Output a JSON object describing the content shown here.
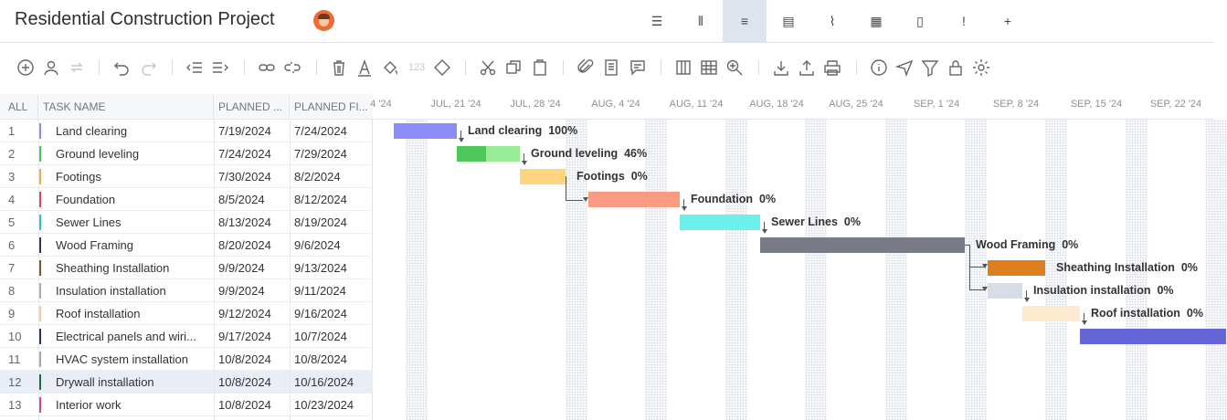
{
  "project": {
    "title": "Residential Construction Project"
  },
  "view_tabs": [
    {
      "icon": "list-view-icon",
      "glyph": "☰"
    },
    {
      "icon": "board-view-icon",
      "glyph": "⫴"
    },
    {
      "icon": "gantt-view-icon",
      "glyph": "≡"
    },
    {
      "icon": "sheet-view-icon",
      "glyph": "▤"
    },
    {
      "icon": "dashboard-view-icon",
      "glyph": "⌇"
    },
    {
      "icon": "calendar-view-icon",
      "glyph": "▦"
    },
    {
      "icon": "docs-view-icon",
      "glyph": "▯"
    },
    {
      "icon": "risk-view-icon",
      "glyph": "!"
    },
    {
      "icon": "add-view-icon",
      "glyph": "+"
    }
  ],
  "toolbar": {
    "number_format_label": "123"
  },
  "grid": {
    "headers": {
      "all": "ALL",
      "task_name": "TASK NAME",
      "planned_start": "PLANNED ...",
      "planned_finish": "PLANNED FI..."
    },
    "rows": [
      {
        "num": "1",
        "name": "Land clearing",
        "start": "7/19/2024",
        "finish": "7/24/2024",
        "color": "#8b8cf7"
      },
      {
        "num": "2",
        "name": "Ground leveling",
        "start": "7/24/2024",
        "finish": "7/29/2024",
        "color": "#4cc85a"
      },
      {
        "num": "3",
        "name": "Footings",
        "start": "7/30/2024",
        "finish": "8/2/2024",
        "color": "#f4a93a"
      },
      {
        "num": "4",
        "name": "Foundation",
        "start": "8/5/2024",
        "finish": "8/12/2024",
        "color": "#e4484c"
      },
      {
        "num": "5",
        "name": "Sewer Lines",
        "start": "8/13/2024",
        "finish": "8/19/2024",
        "color": "#2ac3cf"
      },
      {
        "num": "6",
        "name": "Wood Framing",
        "start": "8/20/2024",
        "finish": "9/6/2024",
        "color": "#343a4a"
      },
      {
        "num": "7",
        "name": "Sheathing Installation",
        "start": "9/9/2024",
        "finish": "9/13/2024",
        "color": "#8a5224"
      },
      {
        "num": "8",
        "name": "Insulation installation",
        "start": "9/9/2024",
        "finish": "9/11/2024",
        "color": "#a7acb5"
      },
      {
        "num": "9",
        "name": "Roof installation",
        "start": "9/12/2024",
        "finish": "9/16/2024",
        "color": "#f6c9a3"
      },
      {
        "num": "10",
        "name": "Electrical panels and wiri...",
        "start": "9/17/2024",
        "finish": "10/7/2024",
        "color": "#2a2f7a"
      },
      {
        "num": "11",
        "name": "HVAC system installation",
        "start": "10/8/2024",
        "finish": "10/8/2024",
        "color": "#a3a7ae"
      },
      {
        "num": "12",
        "name": "Drywall installation",
        "start": "10/8/2024",
        "finish": "10/16/2024",
        "color": "#1f6b3f",
        "selected": true
      },
      {
        "num": "13",
        "name": "Interior work",
        "start": "10/8/2024",
        "finish": "10/23/2024",
        "color": "#d9409a"
      }
    ]
  },
  "gantt": {
    "scale": [
      "4 '24",
      "JUL, 21 '24",
      "JUL, 28 '24",
      "AUG, 4 '24",
      "AUG, 11 '24",
      "AUG, 18 '24",
      "AUG, 25 '24",
      "SEP, 1 '24",
      "SEP, 8 '24",
      "SEP, 15 '24",
      "SEP, 22 '24"
    ],
    "bars": [
      {
        "label": "Land clearing",
        "progress": "100%",
        "color": "#8b8cf7",
        "done_color": "#8b8cf7",
        "progress_fraction": 1.0
      },
      {
        "label": "Ground leveling",
        "progress": "46%",
        "color": "#98ec95",
        "done_color": "#4cc85a",
        "progress_fraction": 0.46
      },
      {
        "label": "Footings",
        "progress": "0%",
        "color": "#fdd57f",
        "done_color": "#fdd57f",
        "progress_fraction": 0
      },
      {
        "label": "Foundation",
        "progress": "0%",
        "color": "#fa9a83",
        "done_color": "#fa9a83",
        "progress_fraction": 0
      },
      {
        "label": "Sewer Lines",
        "progress": "0%",
        "color": "#6cf0ea",
        "done_color": "#6cf0ea",
        "progress_fraction": 0
      },
      {
        "label": "Wood Framing",
        "progress": "0%",
        "color": "#767b85",
        "done_color": "#767b85",
        "progress_fraction": 0
      },
      {
        "label": "Sheathing Installation",
        "progress": "0%",
        "color": "#dd7f1f",
        "done_color": "#dd7f1f",
        "progress_fraction": 0
      },
      {
        "label": "Insulation installation",
        "progress": "0%",
        "color": "#d8dce6",
        "done_color": "#d8dce6",
        "progress_fraction": 0
      },
      {
        "label": "Roof installation",
        "progress": "0%",
        "color": "#fde9cf",
        "done_color": "#fde9cf",
        "progress_fraction": 0
      },
      {
        "label": "",
        "progress": "",
        "color": "#6466d8",
        "done_color": "#6466d8",
        "progress_fraction": 0
      }
    ]
  }
}
